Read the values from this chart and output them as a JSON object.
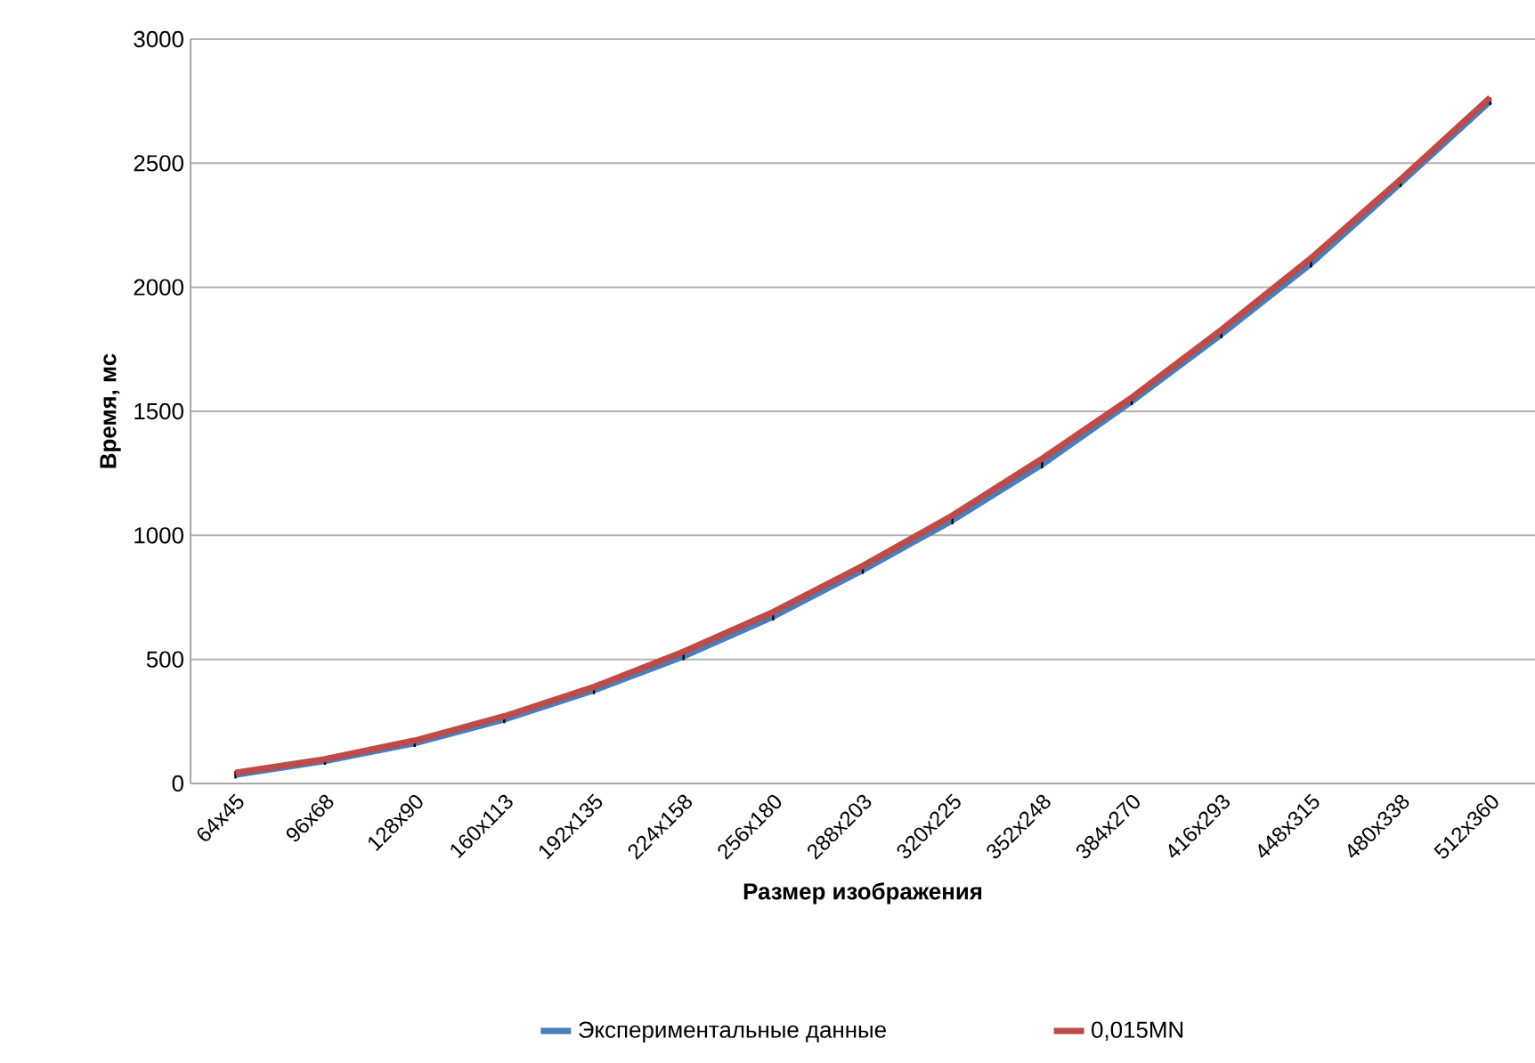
{
  "chart_data": {
    "type": "line",
    "xlabel": "Размер изображения",
    "ylabel": "Время, мс",
    "categories": [
      "64x45",
      "96x68",
      "128x90",
      "160x113",
      "192x135",
      "224x158",
      "256x180",
      "288x203",
      "320x225",
      "352x248",
      "384x270",
      "416x293",
      "448x315",
      "480x338",
      "512x360"
    ],
    "series": [
      {
        "name": "Экспериментальные данные",
        "color": "#4a7ebb",
        "values": [
          35,
          90,
          162,
          258,
          375,
          512,
          672,
          860,
          1060,
          1285,
          1540,
          1810,
          2095,
          2420,
          2750
        ],
        "errors": [
          15,
          15,
          15,
          15,
          15,
          15,
          15,
          15,
          15,
          15,
          15,
          15,
          15,
          15,
          15
        ]
      },
      {
        "name": "0,015MN",
        "color": "#be4b48",
        "values": [
          43,
          98,
          173,
          271,
          389,
          531,
          691,
          877,
          1080,
          1309,
          1555,
          1828,
          2117,
          2434,
          2765
        ]
      }
    ],
    "ylim": [
      0,
      3000
    ],
    "yticks": [
      0,
      500,
      1000,
      1500,
      2000,
      2500,
      3000
    ],
    "grid": "y",
    "legend": "bottom",
    "marker": "none",
    "line_style": "solid"
  }
}
